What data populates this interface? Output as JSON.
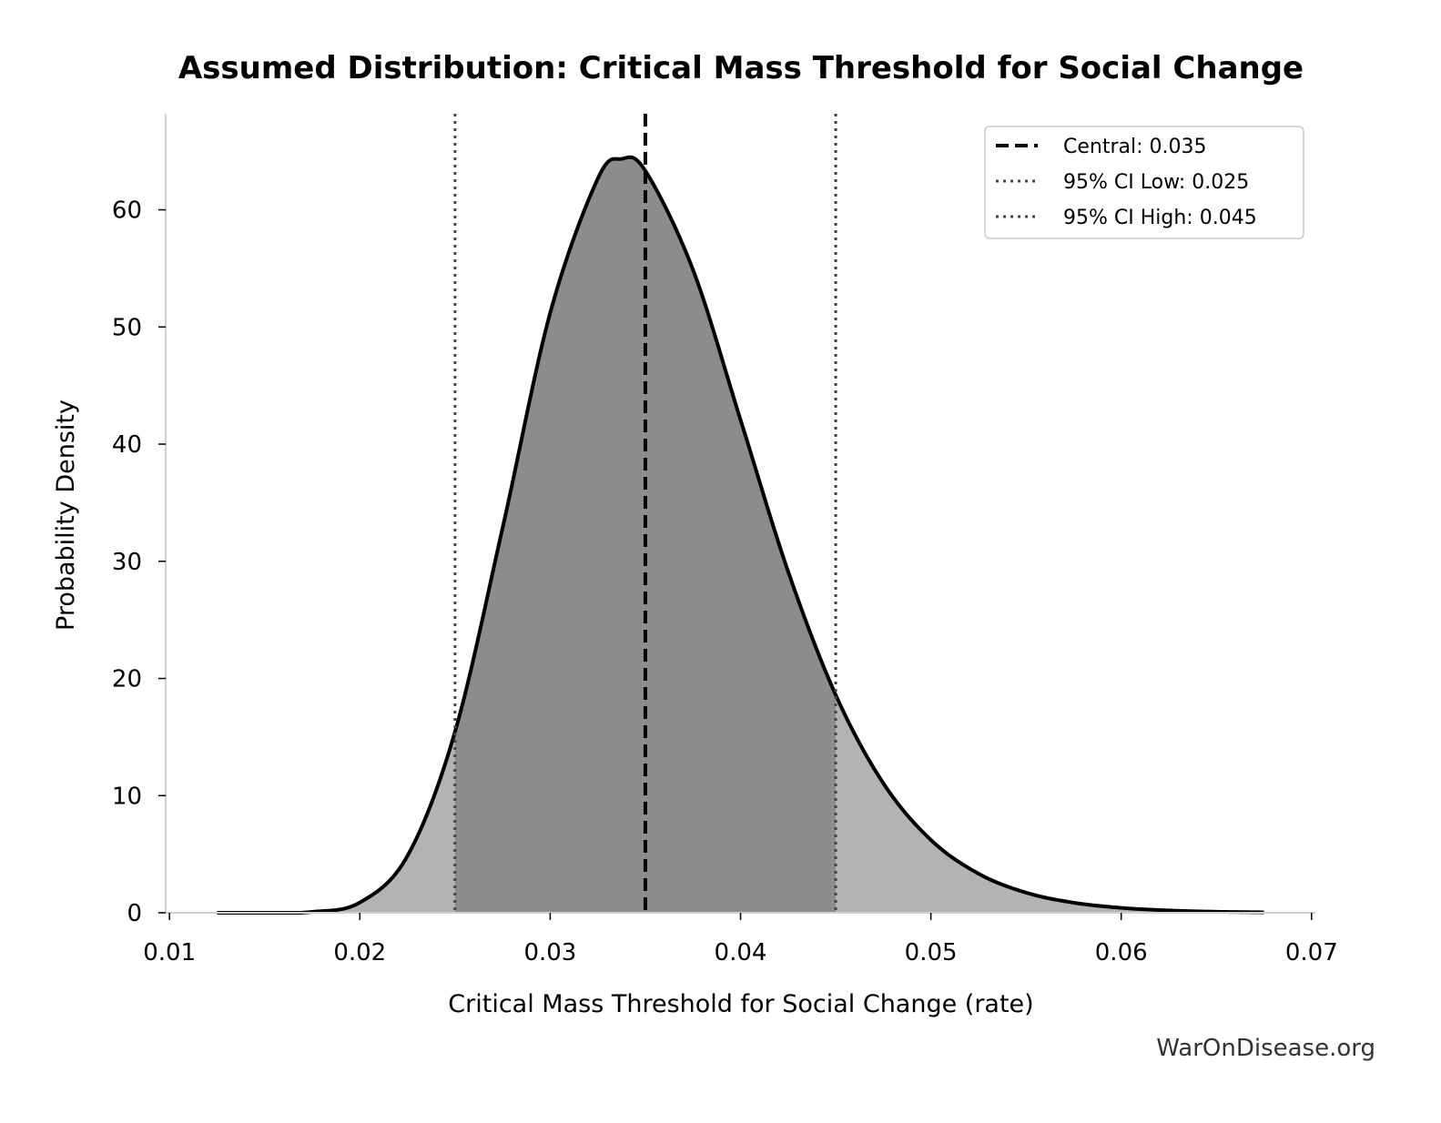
{
  "chart_data": {
    "type": "area",
    "title": "Assumed Distribution: Critical Mass Threshold for Social Change",
    "xlabel": "Critical Mass Threshold for Social Change (rate)",
    "ylabel": "Probability Density",
    "xlim": [
      0.0098,
      0.0702
    ],
    "ylim": [
      0,
      68.2
    ],
    "xticks": [
      0.01,
      0.02,
      0.03,
      0.04,
      0.05,
      0.06,
      0.07
    ],
    "xtick_labels": [
      "0.01",
      "0.02",
      "0.03",
      "0.04",
      "0.05",
      "0.06",
      "0.07"
    ],
    "yticks": [
      0,
      10,
      20,
      30,
      40,
      50,
      60
    ],
    "ytick_labels": [
      "0",
      "10",
      "20",
      "30",
      "40",
      "50",
      "60"
    ],
    "grid": false,
    "legend_position": "top-right",
    "curve": {
      "x": [
        0.0125,
        0.015,
        0.0175,
        0.02,
        0.0225,
        0.025,
        0.0275,
        0.03,
        0.0325,
        0.03375,
        0.035,
        0.0375,
        0.04,
        0.0425,
        0.045,
        0.0475,
        0.05,
        0.0525,
        0.055,
        0.0575,
        0.06,
        0.0625,
        0.065,
        0.0675
      ],
      "y": [
        0.0,
        0.002,
        0.076,
        0.88,
        4.85,
        15.45,
        32.85,
        51.2,
        62.66,
        64.35,
        63.33,
        54.9,
        42.08,
        29.14,
        18.6,
        11.06,
        6.22,
        3.34,
        1.72,
        0.86,
        0.42,
        0.2,
        0.09,
        0.04
      ]
    },
    "shaded_interval": [
      0.025,
      0.045
    ],
    "reference_lines": [
      {
        "label": "Central: 0.035",
        "x": 0.035,
        "style": "dashed",
        "color": "#000000"
      },
      {
        "label": "95% CI Low: 0.025",
        "x": 0.025,
        "style": "dotted",
        "color": "#444444"
      },
      {
        "label": "95% CI High: 0.045",
        "x": 0.045,
        "style": "dotted",
        "color": "#444444"
      }
    ],
    "colors": {
      "tail_fill": "#b3b3b3",
      "interval_fill": "#8c8c8c",
      "curve": "#000000",
      "axis": "#d0d0d0"
    }
  },
  "watermark": "WarOnDisease.org"
}
